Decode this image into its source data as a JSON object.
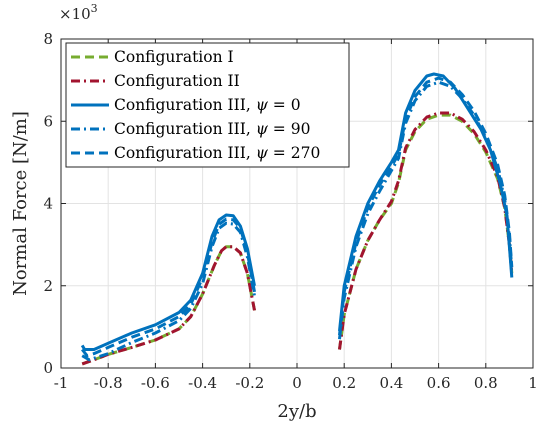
{
  "chart_data": {
    "type": "line",
    "title": "",
    "xlabel": "2y/b",
    "ylabel": "Normal Force [N/m]",
    "y_multiplier_label": "×10",
    "y_multiplier_exponent": "3",
    "xlim": [
      -1,
      1
    ],
    "ylim": [
      0,
      8
    ],
    "x_ticks": [
      -1,
      -0.8,
      -0.6,
      -0.4,
      -0.2,
      0,
      0.2,
      0.4,
      0.6,
      0.8,
      1
    ],
    "x_tick_labels": [
      "-1",
      "-0.8",
      "-0.6",
      "-0.4",
      "-0.2",
      "0",
      "0.2",
      "0.4",
      "0.6",
      "0.8",
      "1"
    ],
    "y_ticks": [
      0,
      2,
      4,
      6,
      8
    ],
    "y_tick_labels": [
      "0",
      "2",
      "4",
      "6",
      "8"
    ],
    "grid": true,
    "legend_position": "top-left",
    "series": [
      {
        "name": "Configuration I",
        "color": "#77AC30",
        "dash": "dashed",
        "segments": [
          [
            [
              -0.91,
              0.1
            ],
            [
              -0.86,
              0.2
            ],
            [
              -0.8,
              0.33
            ],
            [
              -0.7,
              0.5
            ],
            [
              -0.6,
              0.68
            ],
            [
              -0.5,
              0.95
            ],
            [
              -0.45,
              1.25
            ],
            [
              -0.4,
              1.8
            ],
            [
              -0.35,
              2.5
            ],
            [
              -0.32,
              2.85
            ],
            [
              -0.3,
              2.95
            ],
            [
              -0.27,
              2.95
            ],
            [
              -0.24,
              2.8
            ],
            [
              -0.21,
              2.3
            ],
            [
              -0.18,
              1.4
            ]
          ],
          [
            [
              0.18,
              0.45
            ],
            [
              0.2,
              1.3
            ],
            [
              0.25,
              2.4
            ],
            [
              0.3,
              3.1
            ],
            [
              0.35,
              3.6
            ],
            [
              0.4,
              4.0
            ],
            [
              0.43,
              4.5
            ],
            [
              0.46,
              5.3
            ],
            [
              0.5,
              5.75
            ],
            [
              0.55,
              6.05
            ],
            [
              0.6,
              6.15
            ],
            [
              0.65,
              6.15
            ],
            [
              0.7,
              6.0
            ],
            [
              0.75,
              5.7
            ],
            [
              0.8,
              5.25
            ],
            [
              0.85,
              4.6
            ],
            [
              0.88,
              3.9
            ],
            [
              0.9,
              3.0
            ],
            [
              0.91,
              2.3
            ]
          ]
        ]
      },
      {
        "name": "Configuration II",
        "color": "#A2142F",
        "dash": "dashdot",
        "segments": [
          [
            [
              -0.91,
              0.1
            ],
            [
              -0.86,
              0.2
            ],
            [
              -0.8,
              0.33
            ],
            [
              -0.7,
              0.5
            ],
            [
              -0.6,
              0.68
            ],
            [
              -0.5,
              0.95
            ],
            [
              -0.45,
              1.25
            ],
            [
              -0.4,
              1.8
            ],
            [
              -0.35,
              2.5
            ],
            [
              -0.32,
              2.85
            ],
            [
              -0.3,
              2.95
            ],
            [
              -0.27,
              2.95
            ],
            [
              -0.24,
              2.8
            ],
            [
              -0.21,
              2.3
            ],
            [
              -0.18,
              1.4
            ]
          ],
          [
            [
              0.18,
              0.45
            ],
            [
              0.2,
              1.3
            ],
            [
              0.25,
              2.4
            ],
            [
              0.3,
              3.1
            ],
            [
              0.35,
              3.6
            ],
            [
              0.4,
              4.05
            ],
            [
              0.43,
              4.55
            ],
            [
              0.46,
              5.35
            ],
            [
              0.5,
              5.8
            ],
            [
              0.55,
              6.1
            ],
            [
              0.6,
              6.2
            ],
            [
              0.65,
              6.2
            ],
            [
              0.7,
              6.05
            ],
            [
              0.75,
              5.75
            ],
            [
              0.8,
              5.3
            ],
            [
              0.85,
              4.65
            ],
            [
              0.88,
              3.9
            ],
            [
              0.9,
              3.0
            ],
            [
              0.91,
              2.3
            ]
          ]
        ]
      },
      {
        "name": "Configuration III, ψ = 0",
        "name_text": "Configuration III, ",
        "name_symbol": "ψ",
        "name_value": " = 0",
        "color": "#0072BD",
        "dash": "solid",
        "segments": [
          [
            [
              -0.91,
              0.55
            ],
            [
              -0.9,
              0.45
            ],
            [
              -0.86,
              0.45
            ],
            [
              -0.8,
              0.6
            ],
            [
              -0.7,
              0.85
            ],
            [
              -0.6,
              1.05
            ],
            [
              -0.5,
              1.35
            ],
            [
              -0.45,
              1.65
            ],
            [
              -0.4,
              2.3
            ],
            [
              -0.36,
              3.2
            ],
            [
              -0.33,
              3.6
            ],
            [
              -0.3,
              3.72
            ],
            [
              -0.27,
              3.7
            ],
            [
              -0.24,
              3.45
            ],
            [
              -0.21,
              2.9
            ],
            [
              -0.18,
              2.0
            ]
          ],
          [
            [
              0.18,
              0.9
            ],
            [
              0.2,
              2.0
            ],
            [
              0.25,
              3.2
            ],
            [
              0.3,
              4.0
            ],
            [
              0.35,
              4.55
            ],
            [
              0.4,
              5.0
            ],
            [
              0.43,
              5.3
            ],
            [
              0.46,
              6.2
            ],
            [
              0.5,
              6.75
            ],
            [
              0.55,
              7.1
            ],
            [
              0.58,
              7.15
            ],
            [
              0.62,
              7.1
            ],
            [
              0.67,
              6.8
            ],
            [
              0.72,
              6.35
            ],
            [
              0.78,
              5.8
            ],
            [
              0.82,
              5.3
            ],
            [
              0.86,
              4.5
            ],
            [
              0.89,
              3.7
            ],
            [
              0.91,
              2.2
            ]
          ]
        ]
      },
      {
        "name": "Configuration III, ψ = 90",
        "name_text": "Configuration III, ",
        "name_symbol": "ψ",
        "name_value": " = 90",
        "color": "#0072BD",
        "dash": "dashdot",
        "segments": [
          [
            [
              -0.91,
              0.3
            ],
            [
              -0.88,
              0.2
            ],
            [
              -0.8,
              0.35
            ],
            [
              -0.7,
              0.62
            ],
            [
              -0.6,
              0.85
            ],
            [
              -0.5,
              1.15
            ],
            [
              -0.45,
              1.45
            ],
            [
              -0.4,
              2.05
            ],
            [
              -0.36,
              2.95
            ],
            [
              -0.33,
              3.4
            ],
            [
              -0.3,
              3.52
            ],
            [
              -0.27,
              3.5
            ],
            [
              -0.24,
              3.3
            ],
            [
              -0.21,
              2.7
            ],
            [
              -0.18,
              1.75
            ]
          ],
          [
            [
              0.18,
              0.7
            ],
            [
              0.2,
              1.7
            ],
            [
              0.25,
              2.95
            ],
            [
              0.3,
              3.75
            ],
            [
              0.35,
              4.3
            ],
            [
              0.4,
              4.8
            ],
            [
              0.43,
              5.1
            ],
            [
              0.46,
              5.95
            ],
            [
              0.5,
              6.5
            ],
            [
              0.55,
              6.85
            ],
            [
              0.6,
              6.95
            ],
            [
              0.65,
              6.85
            ],
            [
              0.7,
              6.55
            ],
            [
              0.75,
              6.15
            ],
            [
              0.8,
              5.6
            ],
            [
              0.85,
              4.85
            ],
            [
              0.88,
              4.1
            ],
            [
              0.9,
              3.2
            ],
            [
              0.91,
              2.4
            ]
          ]
        ]
      },
      {
        "name": "Configuration III, ψ = 270",
        "name_text": "Configuration III, ",
        "name_symbol": "ψ",
        "name_value": " = 270",
        "color": "#0072BD",
        "dash": "dashed",
        "segments": [
          [
            [
              -0.91,
              0.45
            ],
            [
              -0.89,
              0.3
            ],
            [
              -0.86,
              0.35
            ],
            [
              -0.8,
              0.5
            ],
            [
              -0.7,
              0.75
            ],
            [
              -0.6,
              0.95
            ],
            [
              -0.5,
              1.25
            ],
            [
              -0.45,
              1.55
            ],
            [
              -0.4,
              2.2
            ],
            [
              -0.36,
              3.05
            ],
            [
              -0.33,
              3.5
            ],
            [
              -0.3,
              3.62
            ],
            [
              -0.27,
              3.6
            ],
            [
              -0.24,
              3.4
            ],
            [
              -0.21,
              2.8
            ],
            [
              -0.18,
              1.85
            ]
          ],
          [
            [
              0.18,
              0.8
            ],
            [
              0.2,
              1.85
            ],
            [
              0.25,
              3.05
            ],
            [
              0.3,
              3.9
            ],
            [
              0.35,
              4.45
            ],
            [
              0.4,
              4.9
            ],
            [
              0.43,
              5.2
            ],
            [
              0.46,
              6.05
            ],
            [
              0.5,
              6.6
            ],
            [
              0.55,
              6.95
            ],
            [
              0.6,
              7.05
            ],
            [
              0.65,
              6.95
            ],
            [
              0.7,
              6.65
            ],
            [
              0.75,
              6.25
            ],
            [
              0.8,
              5.7
            ],
            [
              0.85,
              4.95
            ],
            [
              0.88,
              4.2
            ],
            [
              0.9,
              3.3
            ],
            [
              0.91,
              2.45
            ]
          ]
        ]
      }
    ]
  }
}
